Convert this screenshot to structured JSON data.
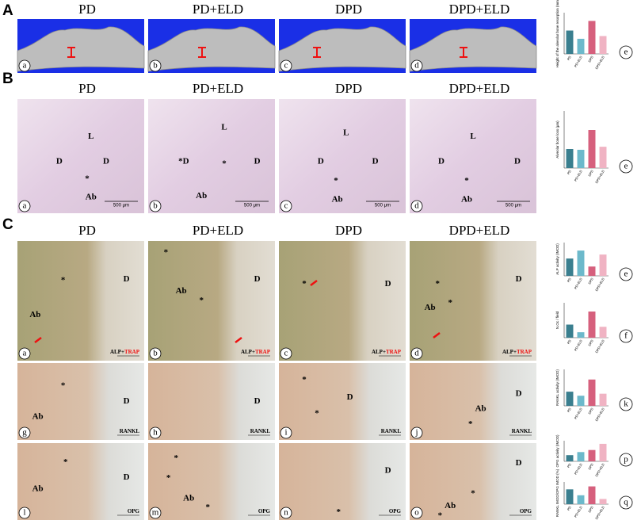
{
  "categories": [
    "PD",
    "PD+ELD",
    "DPD",
    "DPD+ELD"
  ],
  "bar_colors": [
    "#3a7f8f",
    "#6cb9cb",
    "#d6607d",
    "#f0b3c3"
  ],
  "sections": [
    {
      "label": "A",
      "columns": [
        "PD",
        "PD+ELD",
        "DPD",
        "DPD+ELD"
      ],
      "rows": [
        {
          "images": [
            {
              "letter": "a",
              "labels": []
            },
            {
              "letter": "b",
              "labels": []
            },
            {
              "letter": "c",
              "labels": []
            },
            {
              "letter": "d",
              "labels": []
            }
          ]
        }
      ],
      "charts": [
        {
          "letter": "e",
          "ylabel": "Height of the alveolar bone resorption (mm)",
          "values": [
            0.85,
            0.55,
            1.2,
            0.65
          ],
          "ylim": [
            0,
            1.5
          ]
        }
      ]
    },
    {
      "label": "B",
      "columns": [
        "PD",
        "PD+ELD",
        "DPD",
        "DPD+ELD"
      ],
      "rows": [
        {
          "images": [
            {
              "letter": "a",
              "labels": [
                "L",
                "D",
                "D",
                "*",
                "Ab"
              ],
              "scale": "500 μm"
            },
            {
              "letter": "b",
              "labels": [
                "L",
                "*D",
                "D",
                "*",
                "Ab"
              ],
              "scale": "500 μm"
            },
            {
              "letter": "c",
              "labels": [
                "L",
                "D",
                "D",
                "*",
                "Ab"
              ],
              "scale": "500 μm"
            },
            {
              "letter": "d",
              "labels": [
                "L",
                "D",
                "D",
                "*",
                "Ab"
              ],
              "scale": "500 μm"
            }
          ]
        }
      ],
      "charts": [
        {
          "letter": "e",
          "ylabel": "Alveolar bone loss (μm)",
          "values": [
            500,
            480,
            1000,
            560
          ],
          "ylim": [
            0,
            1500
          ]
        }
      ]
    },
    {
      "label": "C",
      "columns": [
        "PD",
        "PD+ELD",
        "DPD",
        "DPD+ELD"
      ],
      "rows": [
        {
          "images": [
            {
              "letter": "a",
              "labels": [
                "*",
                "D",
                "Ab"
              ],
              "stain": [
                "ALP+",
                "TRAP"
              ]
            },
            {
              "letter": "b",
              "labels": [
                "*",
                "Ab",
                "*",
                "D"
              ],
              "stain": [
                "ALP+",
                "TRAP"
              ]
            },
            {
              "letter": "c",
              "labels": [
                "*",
                "D"
              ],
              "stain": [
                "ALP+",
                "TRAP"
              ]
            },
            {
              "letter": "d",
              "labels": [
                "*",
                "Ab",
                "*",
                "D"
              ],
              "stain": [
                "ALP+",
                "TRAP"
              ]
            }
          ]
        },
        {
          "images": [
            {
              "letter": "g",
              "labels": [
                "*",
                "Ab",
                "D"
              ],
              "stain": [
                "RANKL"
              ]
            },
            {
              "letter": "h",
              "labels": [
                "D"
              ],
              "stain": [
                "RANKL"
              ]
            },
            {
              "letter": "i",
              "labels": [
                "*",
                "*",
                "D"
              ],
              "stain": [
                "RANKL"
              ]
            },
            {
              "letter": "j",
              "labels": [
                "D",
                "Ab",
                "*"
              ],
              "stain": [
                "RANKL"
              ]
            }
          ]
        },
        {
          "images": [
            {
              "letter": "l",
              "labels": [
                "*",
                "Ab",
                "D"
              ],
              "stain": [
                "OPG"
              ]
            },
            {
              "letter": "m",
              "labels": [
                "*",
                "*",
                "Ab",
                "*"
              ],
              "stain": [
                "OPG"
              ]
            },
            {
              "letter": "n",
              "labels": [
                "D",
                "*"
              ],
              "stain": [
                "OPG"
              ]
            },
            {
              "letter": "o",
              "labels": [
                "D",
                "*",
                "Ab",
                "*"
              ],
              "stain": [
                "OPG"
              ]
            }
          ]
        }
      ],
      "charts": [
        {
          "letter": "e",
          "ylabel": "ALP activity (IMOD)",
          "values": [
            13,
            19,
            7,
            16
          ],
          "ylim": [
            0,
            25
          ]
        },
        {
          "letter": "f",
          "ylabel": "N.Oc / field",
          "values": [
            6,
            2.5,
            12,
            5
          ],
          "ylim": [
            0,
            16
          ]
        },
        {
          "letter": "k",
          "ylabel": "RANKL activity (IMOD)",
          "values": [
            7,
            5,
            13,
            6
          ],
          "ylim": [
            0,
            18
          ]
        },
        {
          "letter": "p",
          "ylabel": "OPG activity (IMOD)",
          "values": [
            6,
            9,
            11,
            17
          ],
          "ylim": [
            0,
            20
          ]
        },
        {
          "letter": "q",
          "ylabel": "RANKL IMOD/OPG IMOD (%)",
          "values": [
            100,
            60,
            120,
            35
          ],
          "ylim": [
            0,
            150
          ]
        }
      ]
    }
  ]
}
